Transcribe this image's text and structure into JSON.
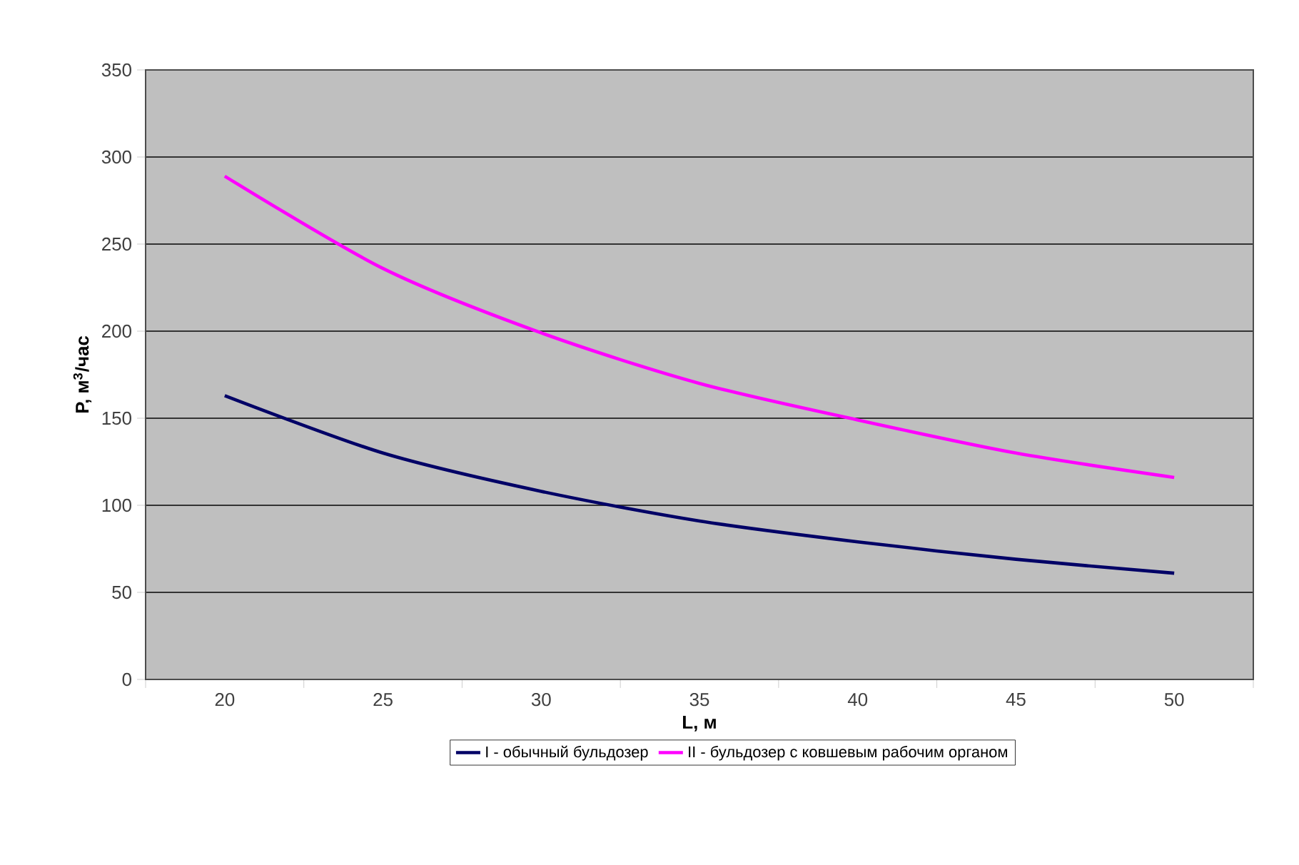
{
  "chart_data": {
    "type": "line",
    "xlabel": "L, м",
    "ylabel": "P, м$^{3}$/час",
    "categories": [
      "20",
      "25",
      "30",
      "35",
      "40",
      "45",
      "50"
    ],
    "series": [
      {
        "name": "I - обычный бульдозер",
        "color": "#000066",
        "values": [
          163,
          130,
          108,
          91,
          79,
          69,
          61
        ]
      },
      {
        "name": "II - бульдозер с ковшевым рабочим органом",
        "color": "#ff00ff",
        "values": [
          289,
          236,
          199,
          170,
          149,
          130,
          116
        ]
      }
    ],
    "ylim": [
      0,
      350
    ],
    "yticks": [
      0,
      50,
      100,
      150,
      200,
      250,
      300,
      350
    ],
    "grid": "y",
    "legend": "bottom"
  }
}
